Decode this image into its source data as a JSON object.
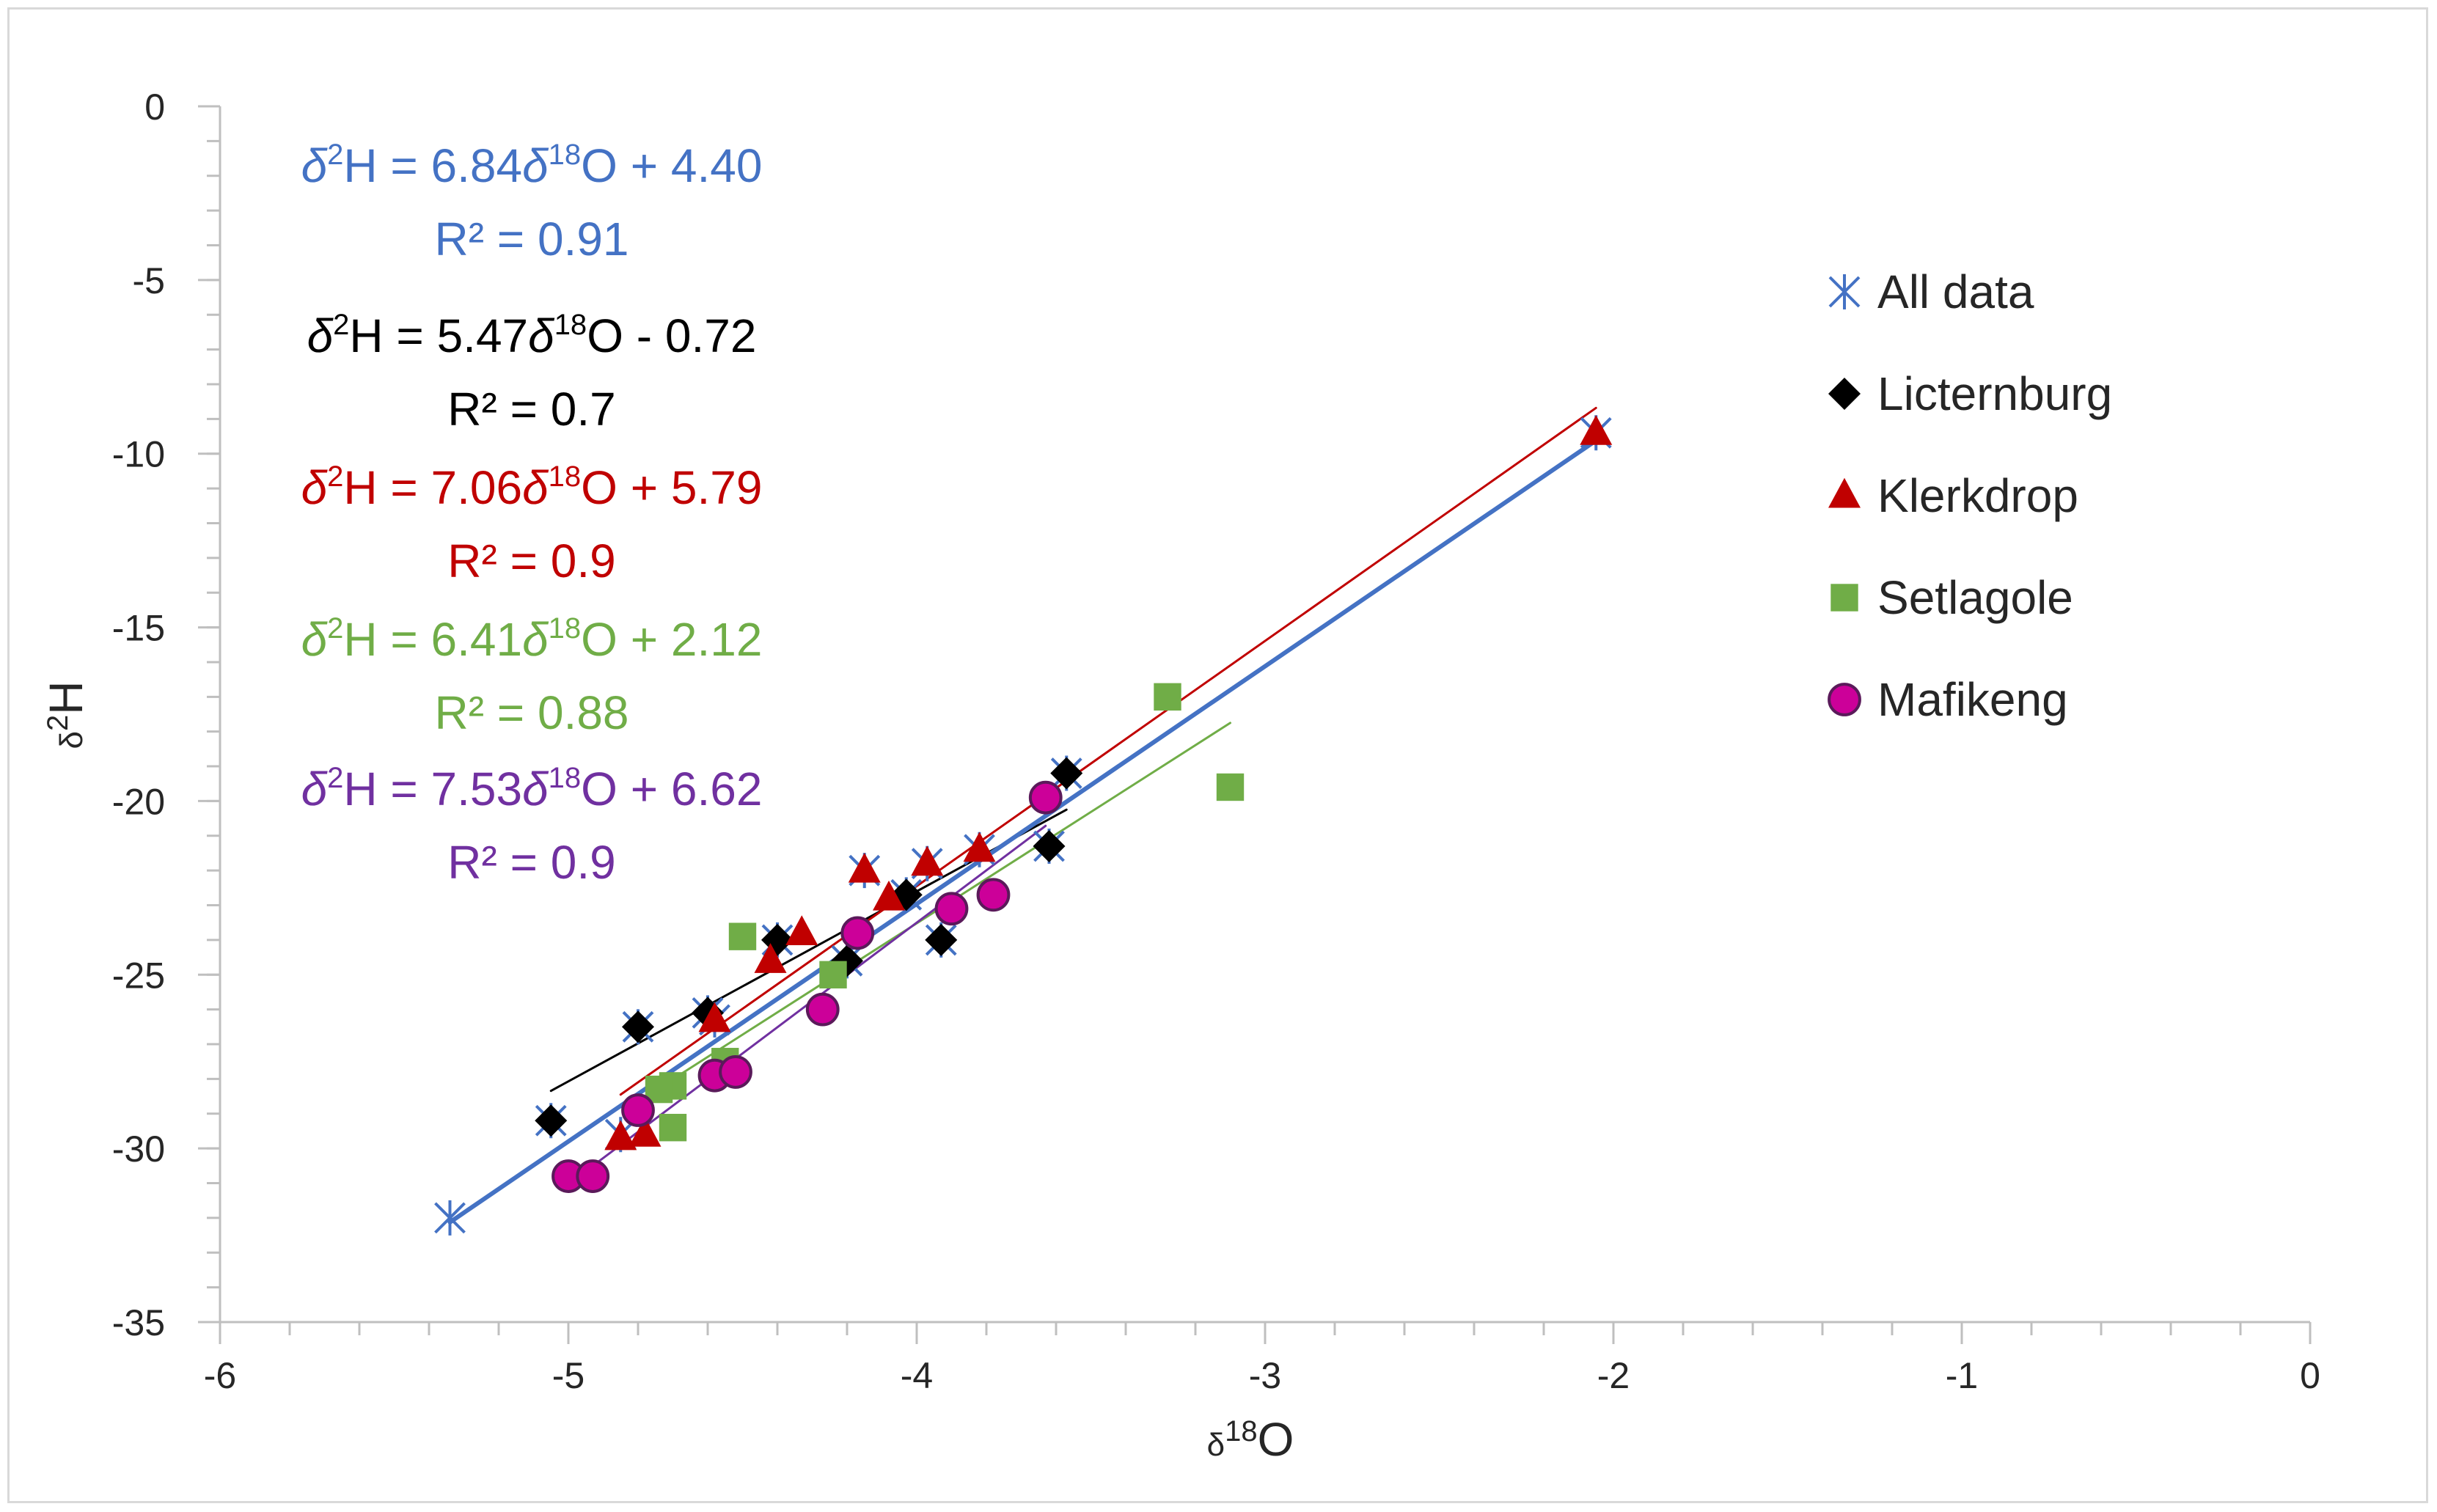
{
  "chart_data": {
    "type": "scatter",
    "xlabel": {
      "prefix": "δ",
      "sup": "18",
      "main": "O"
    },
    "ylabel": {
      "prefix": "δ",
      "sup": "2",
      "main": "H"
    },
    "xlim": [
      -6,
      0
    ],
    "ylim": [
      -35,
      0
    ],
    "x_ticks": [
      -6,
      -5,
      -4,
      -3,
      -2,
      -1,
      0
    ],
    "y_ticks": [
      0,
      -5,
      -10,
      -15,
      -20,
      -25,
      -30,
      -35
    ],
    "legend_position": "right",
    "series": [
      {
        "name": "All data",
        "color": "#4472c4",
        "marker": "asterisk",
        "points": [
          [
            -5.34,
            -32.0
          ],
          [
            -5.05,
            -29.2
          ],
          [
            -4.8,
            -26.5
          ],
          [
            -4.6,
            -26.1
          ],
          [
            -4.4,
            -24.0
          ],
          [
            -4.2,
            -24.6
          ],
          [
            -4.03,
            -22.7
          ],
          [
            -3.93,
            -24.0
          ],
          [
            -3.62,
            -21.3
          ],
          [
            -3.57,
            -19.2
          ],
          [
            -4.15,
            -22.0
          ],
          [
            -3.97,
            -21.8
          ],
          [
            -3.82,
            -21.4
          ],
          [
            -4.58,
            -26.3
          ],
          [
            -4.85,
            -29.6
          ],
          [
            -2.05,
            -9.4
          ]
        ]
      },
      {
        "name": "Licternburg",
        "color": "#000000",
        "marker": "diamond",
        "points": [
          [
            -5.05,
            -29.2
          ],
          [
            -4.8,
            -26.5
          ],
          [
            -4.6,
            -26.1
          ],
          [
            -4.4,
            -24.0
          ],
          [
            -4.2,
            -24.6
          ],
          [
            -4.03,
            -22.7
          ],
          [
            -3.93,
            -24.0
          ],
          [
            -3.62,
            -21.3
          ],
          [
            -3.57,
            -19.2
          ]
        ]
      },
      {
        "name": "Klerkdrop",
        "color": "#c00000",
        "marker": "triangle",
        "points": [
          [
            -4.85,
            -29.7
          ],
          [
            -4.78,
            -29.6
          ],
          [
            -4.58,
            -26.3
          ],
          [
            -4.42,
            -24.6
          ],
          [
            -4.33,
            -23.8
          ],
          [
            -4.15,
            -22.0
          ],
          [
            -4.08,
            -22.8
          ],
          [
            -3.97,
            -21.8
          ],
          [
            -3.82,
            -21.4
          ],
          [
            -2.05,
            -9.4
          ]
        ]
      },
      {
        "name": "Setlagole",
        "color": "#70ad47",
        "marker": "square",
        "points": [
          [
            -4.5,
            -23.9
          ],
          [
            -4.24,
            -25.0
          ],
          [
            -4.55,
            -27.5
          ],
          [
            -4.7,
            -28.2
          ],
          [
            -4.74,
            -28.3
          ],
          [
            -4.7,
            -29.4
          ],
          [
            -3.28,
            -17.0
          ],
          [
            -3.1,
            -19.6
          ]
        ]
      },
      {
        "name": "Mafikeng",
        "color": "#cc0099",
        "marker": "circle",
        "points": [
          [
            -5.0,
            -30.8
          ],
          [
            -4.93,
            -30.8
          ],
          [
            -4.8,
            -28.9
          ],
          [
            -4.58,
            -27.9
          ],
          [
            -4.52,
            -27.8
          ],
          [
            -4.27,
            -26.0
          ],
          [
            -4.17,
            -23.8
          ],
          [
            -3.9,
            -23.1
          ],
          [
            -3.78,
            -22.7
          ],
          [
            -3.63,
            -19.9
          ]
        ]
      }
    ],
    "trendlines": [
      {
        "name": "Licternburg",
        "color": "#000000",
        "slope": 5.47,
        "intercept": -0.72,
        "x_range": [
          -5.05,
          -3.57
        ],
        "stroke": 3
      },
      {
        "name": "Klerkdrop",
        "color": "#c00000",
        "slope": 7.06,
        "intercept": 5.79,
        "x_range": [
          -4.85,
          -2.05
        ],
        "stroke": 3
      },
      {
        "name": "Setlagole",
        "color": "#70ad47",
        "slope": 6.41,
        "intercept": 2.12,
        "x_range": [
          -4.74,
          -3.1
        ],
        "stroke": 3
      },
      {
        "name": "Mafikeng",
        "color": "#7030a0",
        "slope": 7.53,
        "intercept": 6.62,
        "x_range": [
          -5.0,
          -3.63
        ],
        "stroke": 3
      },
      {
        "name": "All data",
        "color": "#4472c4",
        "slope": 6.84,
        "intercept": 4.4,
        "x_range": [
          -5.34,
          -2.05
        ],
        "stroke": 6
      }
    ],
    "equations": [
      {
        "series": "All data",
        "color": "#4472c4",
        "lhs_delta": "δ",
        "lhs_sup": "2",
        "lhs_main": "H",
        "coef": " = 6.84",
        "rhs_delta": "δ",
        "rhs_sup": "18",
        "rhs_main": "O",
        "const": " + 4.40",
        "r2": "R² = 0.91"
      },
      {
        "series": "Licternburg",
        "color": "#000000",
        "lhs_delta": "δ",
        "lhs_sup": "2",
        "lhs_main": "H",
        "coef": " = 5.47",
        "rhs_delta": "δ",
        "rhs_sup": "18",
        "rhs_main": "O",
        "const": " - 0.72",
        "r2": "R² = 0.7"
      },
      {
        "series": "Klerkdrop",
        "color": "#c00000",
        "lhs_delta": "δ",
        "lhs_sup": "2",
        "lhs_main": "H",
        "coef": " = 7.06",
        "rhs_delta": "δ",
        "rhs_sup": "18",
        "rhs_main": "O",
        "const": " + 5.79",
        "r2": "R² = 0.9"
      },
      {
        "series": "Setlagole",
        "color": "#70ad47",
        "lhs_delta": "δ",
        "lhs_sup": "2",
        "lhs_main": "H",
        "coef": " = 6.41",
        "rhs_delta": "δ",
        "rhs_sup": "18",
        "rhs_main": "O",
        "const": " + 2.12",
        "r2": "R² = 0.88"
      },
      {
        "series": "Mafikeng",
        "color": "#7030a0",
        "lhs_delta": "δ",
        "lhs_sup": "2",
        "lhs_main": "H",
        "coef": " = 7.53",
        "rhs_delta": "δ",
        "rhs_sup": "18",
        "rhs_main": "O",
        "const": " + 6.62",
        "r2": "R² = 0.9"
      }
    ]
  }
}
